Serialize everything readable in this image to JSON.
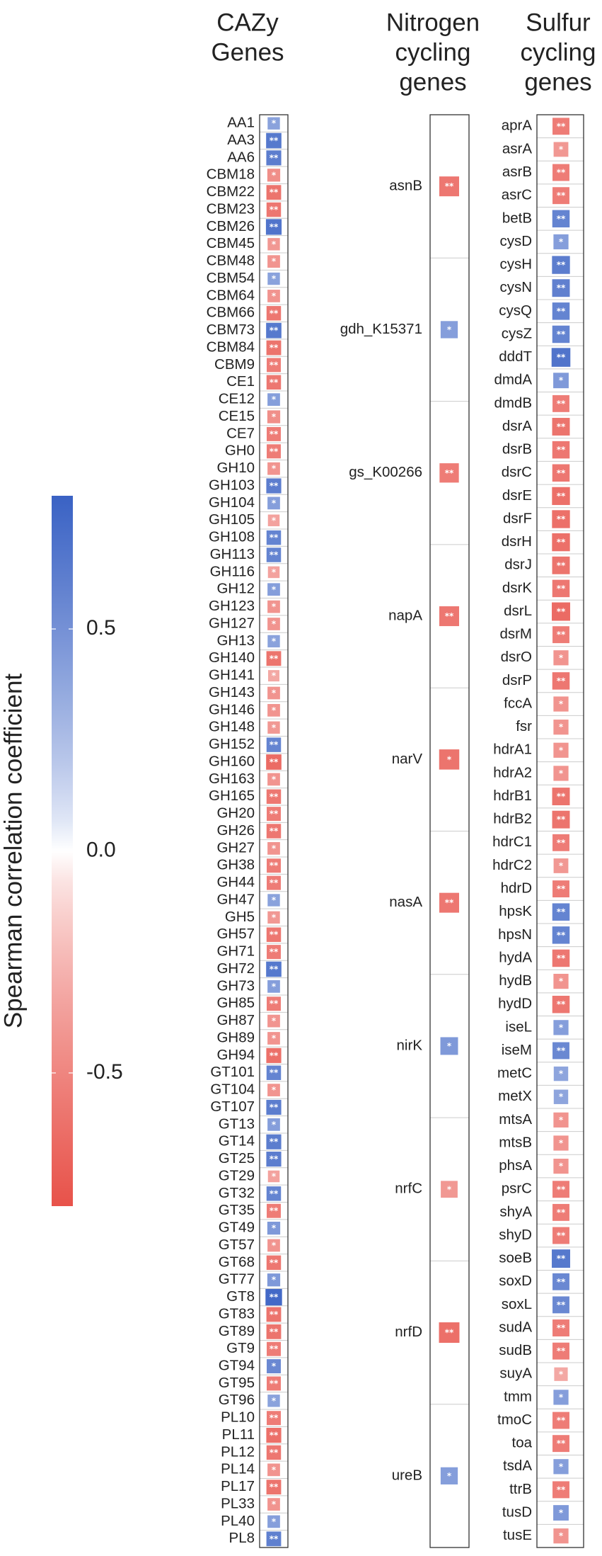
{
  "chart_data": {
    "type": "heatmap",
    "colorbar": {
      "title": "Spearman correlation coefficient",
      "ticks": [
        0.5,
        0.0,
        -0.5
      ],
      "tick_labels": [
        "0.5",
        "0.0",
        "-0.5"
      ],
      "range": [
        -0.8,
        0.8
      ],
      "colors": {
        "negative": "#e8524a",
        "neutral": "#ffffff",
        "positive": "#3a62c4"
      }
    },
    "panels": [
      {
        "title": [
          "CAZy",
          "Genes"
        ],
        "rows": [
          {
            "gene": "AA1",
            "value": 0.4,
            "sig": "*"
          },
          {
            "gene": "AA3",
            "value": 0.65,
            "sig": "**"
          },
          {
            "gene": "AA6",
            "value": 0.62,
            "sig": "**"
          },
          {
            "gene": "CBM18",
            "value": -0.45,
            "sig": "*"
          },
          {
            "gene": "CBM22",
            "value": -0.6,
            "sig": "**"
          },
          {
            "gene": "CBM23",
            "value": -0.58,
            "sig": "**"
          },
          {
            "gene": "CBM26",
            "value": 0.68,
            "sig": "**"
          },
          {
            "gene": "CBM45",
            "value": -0.4,
            "sig": "*"
          },
          {
            "gene": "CBM48",
            "value": -0.42,
            "sig": "*"
          },
          {
            "gene": "CBM54",
            "value": 0.4,
            "sig": "*"
          },
          {
            "gene": "CBM64",
            "value": -0.42,
            "sig": "*"
          },
          {
            "gene": "CBM66",
            "value": -0.58,
            "sig": "**"
          },
          {
            "gene": "CBM73",
            "value": 0.65,
            "sig": "**"
          },
          {
            "gene": "CBM84",
            "value": -0.6,
            "sig": "**"
          },
          {
            "gene": "CBM9",
            "value": -0.55,
            "sig": "**"
          },
          {
            "gene": "CE1",
            "value": -0.58,
            "sig": "**"
          },
          {
            "gene": "CE12",
            "value": 0.42,
            "sig": "*"
          },
          {
            "gene": "CE15",
            "value": -0.45,
            "sig": "*"
          },
          {
            "gene": "CE7",
            "value": -0.55,
            "sig": "**"
          },
          {
            "gene": "GH0",
            "value": -0.55,
            "sig": "**"
          },
          {
            "gene": "GH10",
            "value": -0.42,
            "sig": "*"
          },
          {
            "gene": "GH103",
            "value": 0.62,
            "sig": "**"
          },
          {
            "gene": "GH104",
            "value": 0.42,
            "sig": "*"
          },
          {
            "gene": "GH105",
            "value": -0.35,
            "sig": "*"
          },
          {
            "gene": "GH108",
            "value": 0.58,
            "sig": "**"
          },
          {
            "gene": "GH113",
            "value": 0.58,
            "sig": "**"
          },
          {
            "gene": "GH116",
            "value": -0.35,
            "sig": "*"
          },
          {
            "gene": "GH12",
            "value": 0.42,
            "sig": "*"
          },
          {
            "gene": "GH123",
            "value": -0.42,
            "sig": "*"
          },
          {
            "gene": "GH127",
            "value": -0.42,
            "sig": "*"
          },
          {
            "gene": "GH13",
            "value": 0.4,
            "sig": "*"
          },
          {
            "gene": "GH140",
            "value": -0.6,
            "sig": "**"
          },
          {
            "gene": "GH141",
            "value": -0.32,
            "sig": "*"
          },
          {
            "gene": "GH143",
            "value": -0.42,
            "sig": "*"
          },
          {
            "gene": "GH146",
            "value": -0.42,
            "sig": "*"
          },
          {
            "gene": "GH148",
            "value": -0.4,
            "sig": "*"
          },
          {
            "gene": "GH152",
            "value": 0.58,
            "sig": "**"
          },
          {
            "gene": "GH160",
            "value": -0.65,
            "sig": "**"
          },
          {
            "gene": "GH163",
            "value": -0.42,
            "sig": "*"
          },
          {
            "gene": "GH165",
            "value": -0.58,
            "sig": "**"
          },
          {
            "gene": "GH20",
            "value": -0.55,
            "sig": "**"
          },
          {
            "gene": "GH26",
            "value": -0.58,
            "sig": "**"
          },
          {
            "gene": "GH27",
            "value": -0.42,
            "sig": "*"
          },
          {
            "gene": "GH38",
            "value": -0.55,
            "sig": "**"
          },
          {
            "gene": "GH44",
            "value": -0.55,
            "sig": "**"
          },
          {
            "gene": "GH47",
            "value": 0.4,
            "sig": "*"
          },
          {
            "gene": "GH5",
            "value": -0.4,
            "sig": "*"
          },
          {
            "gene": "GH57",
            "value": -0.58,
            "sig": "**"
          },
          {
            "gene": "GH71",
            "value": -0.55,
            "sig": "**"
          },
          {
            "gene": "GH72",
            "value": 0.65,
            "sig": "**"
          },
          {
            "gene": "GH73",
            "value": 0.42,
            "sig": "*"
          },
          {
            "gene": "GH85",
            "value": -0.55,
            "sig": "**"
          },
          {
            "gene": "GH87",
            "value": -0.42,
            "sig": "*"
          },
          {
            "gene": "GH89",
            "value": -0.42,
            "sig": "*"
          },
          {
            "gene": "GH94",
            "value": -0.62,
            "sig": "**"
          },
          {
            "gene": "GT101",
            "value": 0.58,
            "sig": "**"
          },
          {
            "gene": "GT104",
            "value": -0.42,
            "sig": "*"
          },
          {
            "gene": "GT107",
            "value": 0.62,
            "sig": "**"
          },
          {
            "gene": "GT13",
            "value": 0.42,
            "sig": "*"
          },
          {
            "gene": "GT14",
            "value": 0.62,
            "sig": "**"
          },
          {
            "gene": "GT25",
            "value": 0.62,
            "sig": "**"
          },
          {
            "gene": "GT29",
            "value": -0.35,
            "sig": "*"
          },
          {
            "gene": "GT32",
            "value": 0.58,
            "sig": "**"
          },
          {
            "gene": "GT35",
            "value": -0.55,
            "sig": "**"
          },
          {
            "gene": "GT49",
            "value": 0.45,
            "sig": "*"
          },
          {
            "gene": "GT57",
            "value": -0.42,
            "sig": "*"
          },
          {
            "gene": "GT68",
            "value": -0.58,
            "sig": "**"
          },
          {
            "gene": "GT77",
            "value": 0.45,
            "sig": "*"
          },
          {
            "gene": "GT8",
            "value": 0.75,
            "sig": "**"
          },
          {
            "gene": "GT83",
            "value": -0.6,
            "sig": "**"
          },
          {
            "gene": "GT89",
            "value": -0.6,
            "sig": "**"
          },
          {
            "gene": "GT9",
            "value": -0.55,
            "sig": "**"
          },
          {
            "gene": "GT94",
            "value": 0.55,
            "sig": "*"
          },
          {
            "gene": "GT95",
            "value": -0.55,
            "sig": "**"
          },
          {
            "gene": "GT96",
            "value": 0.4,
            "sig": "*"
          },
          {
            "gene": "PL10",
            "value": -0.55,
            "sig": "**"
          },
          {
            "gene": "PL11",
            "value": -0.62,
            "sig": "**"
          },
          {
            "gene": "PL12",
            "value": -0.58,
            "sig": "**"
          },
          {
            "gene": "PL14",
            "value": -0.42,
            "sig": "*"
          },
          {
            "gene": "PL17",
            "value": -0.6,
            "sig": "**"
          },
          {
            "gene": "PL33",
            "value": -0.42,
            "sig": "*"
          },
          {
            "gene": "PL40",
            "value": 0.42,
            "sig": "*"
          },
          {
            "gene": "PL8",
            "value": 0.6,
            "sig": "**"
          }
        ]
      },
      {
        "title": [
          "Nitrogen",
          "cycling",
          "genes"
        ],
        "rows": [
          {
            "gene": "asnB",
            "value": -0.58,
            "sig": "**"
          },
          {
            "gene": "gdh_K15371",
            "value": 0.42,
            "sig": "*"
          },
          {
            "gene": "gs_K00266",
            "value": -0.55,
            "sig": "**"
          },
          {
            "gene": "napA",
            "value": -0.58,
            "sig": "**"
          },
          {
            "gene": "narV",
            "value": -0.6,
            "sig": "*"
          },
          {
            "gene": "nasA",
            "value": -0.58,
            "sig": "**"
          },
          {
            "gene": "nirK",
            "value": 0.45,
            "sig": "*"
          },
          {
            "gene": "nrfC",
            "value": -0.4,
            "sig": "*"
          },
          {
            "gene": "nrfD",
            "value": -0.62,
            "sig": "**"
          },
          {
            "gene": "ureB",
            "value": 0.42,
            "sig": "*"
          }
        ]
      },
      {
        "title": [
          "Sulfur",
          "cycling",
          "genes"
        ],
        "rows": [
          {
            "gene": "aprA",
            "value": -0.55,
            "sig": "**"
          },
          {
            "gene": "asrA",
            "value": -0.4,
            "sig": "*"
          },
          {
            "gene": "asrB",
            "value": -0.55,
            "sig": "**"
          },
          {
            "gene": "asrC",
            "value": -0.55,
            "sig": "**"
          },
          {
            "gene": "betB",
            "value": 0.58,
            "sig": "**"
          },
          {
            "gene": "cysD",
            "value": 0.42,
            "sig": "*"
          },
          {
            "gene": "cysH",
            "value": 0.62,
            "sig": "**"
          },
          {
            "gene": "cysN",
            "value": 0.6,
            "sig": "**"
          },
          {
            "gene": "cysQ",
            "value": 0.58,
            "sig": "**"
          },
          {
            "gene": "cysZ",
            "value": 0.58,
            "sig": "**"
          },
          {
            "gene": "dddT",
            "value": 0.68,
            "sig": "**"
          },
          {
            "gene": "dmdA",
            "value": 0.45,
            "sig": "*"
          },
          {
            "gene": "dmdB",
            "value": -0.55,
            "sig": "**"
          },
          {
            "gene": "dsrA",
            "value": -0.6,
            "sig": "**"
          },
          {
            "gene": "dsrB",
            "value": -0.58,
            "sig": "**"
          },
          {
            "gene": "dsrC",
            "value": -0.58,
            "sig": "**"
          },
          {
            "gene": "dsrE",
            "value": -0.62,
            "sig": "**"
          },
          {
            "gene": "dsrF",
            "value": -0.62,
            "sig": "**"
          },
          {
            "gene": "dsrH",
            "value": -0.62,
            "sig": "**"
          },
          {
            "gene": "dsrJ",
            "value": -0.6,
            "sig": "**"
          },
          {
            "gene": "dsrK",
            "value": -0.58,
            "sig": "**"
          },
          {
            "gene": "dsrL",
            "value": -0.65,
            "sig": "**"
          },
          {
            "gene": "dsrM",
            "value": -0.55,
            "sig": "**"
          },
          {
            "gene": "dsrO",
            "value": -0.42,
            "sig": "*"
          },
          {
            "gene": "dsrP",
            "value": -0.58,
            "sig": "**"
          },
          {
            "gene": "fccA",
            "value": -0.42,
            "sig": "*"
          },
          {
            "gene": "fsr",
            "value": -0.42,
            "sig": "*"
          },
          {
            "gene": "hdrA1",
            "value": -0.42,
            "sig": "*"
          },
          {
            "gene": "hdrA2",
            "value": -0.42,
            "sig": "*"
          },
          {
            "gene": "hdrB1",
            "value": -0.6,
            "sig": "**"
          },
          {
            "gene": "hdrB2",
            "value": -0.6,
            "sig": "**"
          },
          {
            "gene": "hdrC1",
            "value": -0.55,
            "sig": "**"
          },
          {
            "gene": "hdrC2",
            "value": -0.4,
            "sig": "*"
          },
          {
            "gene": "hdrD",
            "value": -0.55,
            "sig": "**"
          },
          {
            "gene": "hpsK",
            "value": 0.58,
            "sig": "**"
          },
          {
            "gene": "hpsN",
            "value": 0.58,
            "sig": "**"
          },
          {
            "gene": "hydA",
            "value": -0.58,
            "sig": "**"
          },
          {
            "gene": "hydB",
            "value": -0.42,
            "sig": "*"
          },
          {
            "gene": "hydD",
            "value": -0.58,
            "sig": "**"
          },
          {
            "gene": "iseL",
            "value": 0.42,
            "sig": "*"
          },
          {
            "gene": "iseM",
            "value": 0.55,
            "sig": "**"
          },
          {
            "gene": "metC",
            "value": 0.38,
            "sig": "*"
          },
          {
            "gene": "metX",
            "value": 0.38,
            "sig": "*"
          },
          {
            "gene": "mtsA",
            "value": -0.42,
            "sig": "*"
          },
          {
            "gene": "mtsB",
            "value": -0.42,
            "sig": "*"
          },
          {
            "gene": "phsA",
            "value": -0.42,
            "sig": "*"
          },
          {
            "gene": "psrC",
            "value": -0.55,
            "sig": "**"
          },
          {
            "gene": "shyA",
            "value": -0.55,
            "sig": "**"
          },
          {
            "gene": "shyD",
            "value": -0.55,
            "sig": "**"
          },
          {
            "gene": "soeB",
            "value": 0.65,
            "sig": "**"
          },
          {
            "gene": "soxD",
            "value": 0.55,
            "sig": "**"
          },
          {
            "gene": "soxL",
            "value": 0.55,
            "sig": "**"
          },
          {
            "gene": "sudA",
            "value": -0.55,
            "sig": "**"
          },
          {
            "gene": "sudB",
            "value": -0.55,
            "sig": "**"
          },
          {
            "gene": "suyA",
            "value": -0.32,
            "sig": "*"
          },
          {
            "gene": "tmm",
            "value": 0.42,
            "sig": "*"
          },
          {
            "gene": "tmoC",
            "value": -0.55,
            "sig": "**"
          },
          {
            "gene": "toa",
            "value": -0.55,
            "sig": "**"
          },
          {
            "gene": "tsdA",
            "value": 0.42,
            "sig": "*"
          },
          {
            "gene": "ttrB",
            "value": -0.55,
            "sig": "**"
          },
          {
            "gene": "tusD",
            "value": 0.45,
            "sig": "*"
          },
          {
            "gene": "tusE",
            "value": -0.42,
            "sig": "*"
          }
        ]
      }
    ]
  }
}
